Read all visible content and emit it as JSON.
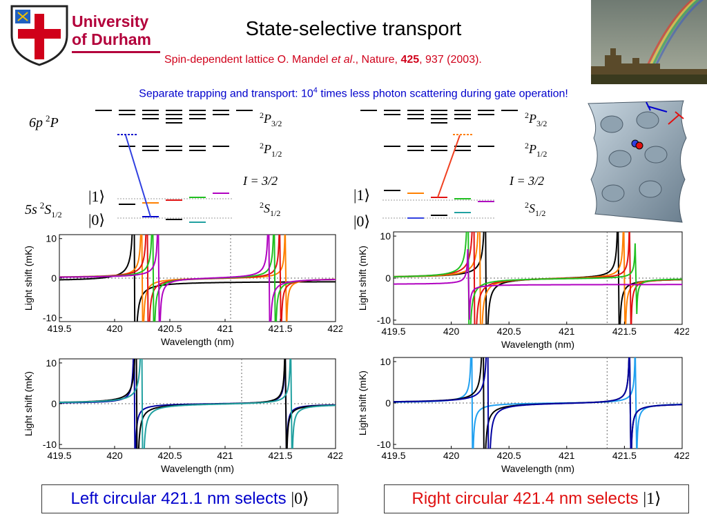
{
  "header": {
    "logo_text_line1": "University",
    "logo_text_line2": "of Durham",
    "title": "State-selective transport",
    "citation_prefix": "Spin-dependent lattice O. Mandel ",
    "citation_et_al": "et al",
    "citation_mid": "., Nature, ",
    "citation_volume": "425",
    "citation_suffix": ", 937 (2003).",
    "subtitle_prefix": "Separate trapping and transport: 10",
    "subtitle_exp": "4",
    "subtitle_suffix": " times less photon scattering during gate operation!"
  },
  "energy_levels": {
    "upper_config": "6p",
    "lower_config": "5s",
    "level_P32": "P",
    "level_P32_sub": "3/2",
    "level_P12": "P",
    "level_P12_sub": "1/2",
    "level_S12": "S",
    "level_S12_sub": "1/2",
    "superscript": "2",
    "nuclear_spin": "I = 3/2",
    "ket_one": "|1⟩",
    "ket_zero": "|0⟩"
  },
  "colors": {
    "black": "#000000",
    "orange": "#ff8000",
    "red": "#e01010",
    "green": "#20c020",
    "magenta": "#b000c0",
    "blue": "#0000cc",
    "teal": "#20a0a0",
    "navy": "#0000a0",
    "lightblue": "#20a0f0",
    "left_caption": "#0000cc",
    "right_caption": "#e01010"
  },
  "captions": {
    "left": "Left circular 421.1 nm selects",
    "left_ket": "|0⟩",
    "right": "Right circular 421.4 nm selects",
    "right_ket": "|1⟩"
  },
  "chart_data": [
    {
      "type": "line",
      "xlabel": "Wavelength (nm)",
      "ylabel": "Light shift (mK)",
      "xlim": [
        419.5,
        422
      ],
      "ylim": [
        -11,
        11
      ],
      "xticks": [
        "419.5",
        "420",
        "420.5",
        "421",
        "421.5",
        "422"
      ],
      "yticks": [
        "10",
        "0",
        "-10"
      ],
      "vlines_dashed": [
        421.05
      ],
      "series": [
        {
          "color": "black",
          "resonances": [
            {
              "x0": 420.18,
              "a": 0.25
            }
          ],
          "offset": -0.8
        },
        {
          "color": "orange",
          "resonances": [
            {
              "x0": 420.25,
              "a": 0.15
            },
            {
              "x0": 421.55,
              "a": 0.1
            }
          ],
          "offset": 0
        },
        {
          "color": "red",
          "resonances": [
            {
              "x0": 420.3,
              "a": 0.18
            },
            {
              "x0": 421.5,
              "a": 0.12
            }
          ],
          "offset": 0
        },
        {
          "color": "green",
          "resonances": [
            {
              "x0": 420.35,
              "a": 0.16
            },
            {
              "x0": 421.45,
              "a": 0.14
            }
          ],
          "offset": 0
        },
        {
          "color": "magenta",
          "resonances": [
            {
              "x0": 420.4,
              "a": 0.14
            },
            {
              "x0": 421.4,
              "a": 0.16
            }
          ],
          "offset": 0
        }
      ]
    },
    {
      "type": "line",
      "xlabel": "Wavelength (nm)",
      "ylabel": "Light shift (mK)",
      "xlim": [
        419.5,
        422
      ],
      "ylim": [
        -11,
        11
      ],
      "xticks": [
        "419.5",
        "420",
        "420.5",
        "421",
        "421.5",
        "422"
      ],
      "yticks": [
        "10",
        "0",
        "-10"
      ],
      "vlines_dashed": [
        421.35
      ],
      "series": [
        {
          "color": "black",
          "resonances": [
            {
              "x0": 420.3,
              "a": 0.2
            },
            {
              "x0": 421.45,
              "a": 0.14
            }
          ],
          "offset": 0
        },
        {
          "color": "orange",
          "resonances": [
            {
              "x0": 420.25,
              "a": 0.2
            },
            {
              "x0": 421.5,
              "a": 0.12
            }
          ],
          "offset": 0
        },
        {
          "color": "red",
          "resonances": [
            {
              "x0": 420.2,
              "a": 0.22
            },
            {
              "x0": 421.55,
              "a": 0.1
            }
          ],
          "offset": 0
        },
        {
          "color": "green",
          "resonances": [
            {
              "x0": 420.15,
              "a": 0.2
            },
            {
              "x0": 421.6,
              "a": 0.06
            }
          ],
          "offset": 0
        },
        {
          "color": "magenta",
          "resonances": [
            {
              "x0": 420.15,
              "a": 0.06
            }
          ],
          "offset": -1.5
        }
      ]
    },
    {
      "type": "line",
      "xlabel": "Wavelength (nm)",
      "ylabel": "Light shift (mK)",
      "xlim": [
        419.5,
        422
      ],
      "ylim": [
        -11,
        11
      ],
      "xticks": [
        "419.5",
        "420",
        "420.5",
        "421",
        "421.5",
        "422"
      ],
      "yticks": [
        "10",
        "0",
        "-10"
      ],
      "vlines_dashed": [
        421.15
      ],
      "series": [
        {
          "color": "navy",
          "resonances": [
            {
              "x0": 420.18,
              "a": 0.12
            },
            {
              "x0": 421.55,
              "a": 0.1
            }
          ],
          "offset": 0
        },
        {
          "color": "black",
          "resonances": [
            {
              "x0": 420.2,
              "a": 0.2
            },
            {
              "x0": 421.55,
              "a": 0.12
            }
          ],
          "offset": 0
        },
        {
          "color": "teal",
          "resonances": [
            {
              "x0": 420.25,
              "a": 0.2
            },
            {
              "x0": 421.6,
              "a": 0.12
            }
          ],
          "offset": 0
        }
      ]
    },
    {
      "type": "line",
      "xlabel": "Wavelength (nm)",
      "ylabel": "Light shift (mK)",
      "xlim": [
        419.5,
        422
      ],
      "ylim": [
        -11,
        11
      ],
      "xticks": [
        "419.5",
        "420",
        "420.5",
        "421",
        "421.5",
        "422"
      ],
      "yticks": [
        "10",
        "0",
        "-10"
      ],
      "vlines_dashed": [
        421.35
      ],
      "series": [
        {
          "color": "lightblue",
          "resonances": [
            {
              "x0": 420.18,
              "a": 0.12
            },
            {
              "x0": 421.6,
              "a": 0.1
            }
          ],
          "offset": 0
        },
        {
          "color": "black",
          "resonances": [
            {
              "x0": 420.28,
              "a": 0.2
            },
            {
              "x0": 421.55,
              "a": 0.12
            }
          ],
          "offset": 0
        },
        {
          "color": "navy",
          "resonances": [
            {
              "x0": 420.32,
              "a": 0.2
            },
            {
              "x0": 421.55,
              "a": 0.12
            }
          ],
          "offset": 0
        }
      ]
    }
  ]
}
